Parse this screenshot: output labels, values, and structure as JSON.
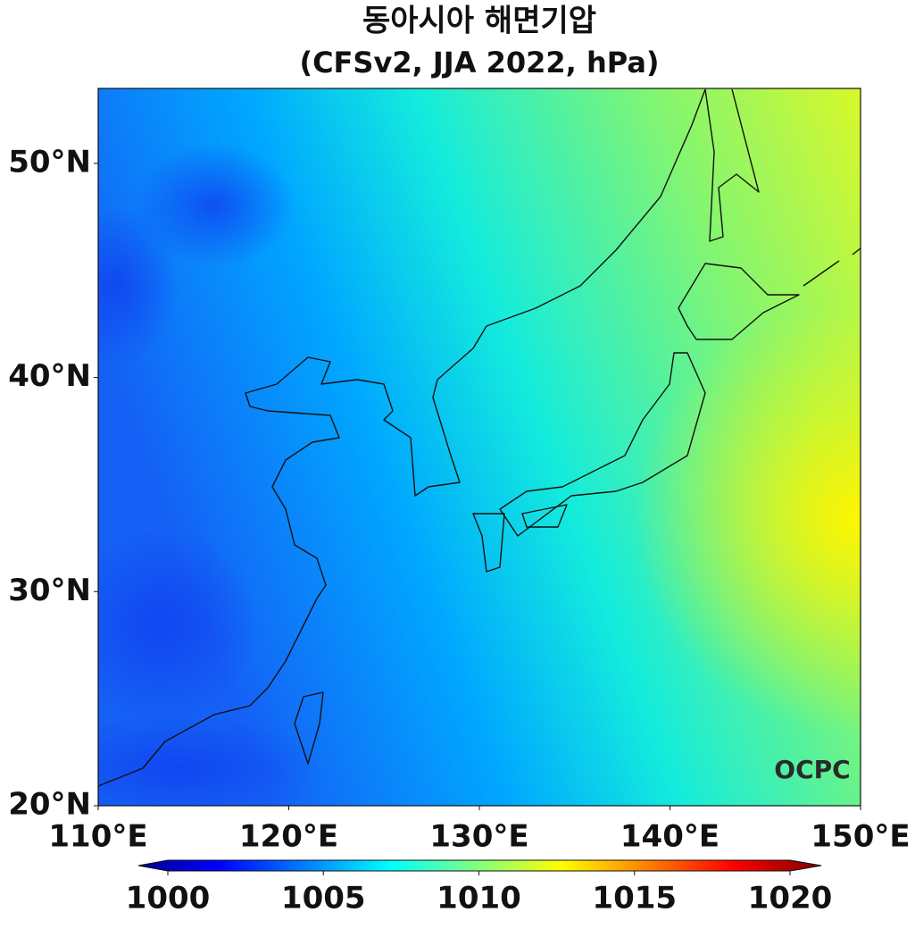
{
  "title": "동아시아 해면기압",
  "subtitle": "(CFSv2, JJA 2022, hPa)",
  "map": {
    "lon_lim": [
      110,
      150
    ],
    "lat_lim": [
      20,
      53.5
    ],
    "lon_ticks": [
      {
        "value": 110,
        "label": "110°E"
      },
      {
        "value": 120,
        "label": "120°E"
      },
      {
        "value": 130,
        "label": "130°E"
      },
      {
        "value": 140,
        "label": "140°E"
      },
      {
        "value": 150,
        "label": "150°E"
      }
    ],
    "lat_ticks": [
      {
        "value": 20,
        "label": "20°N"
      },
      {
        "value": 30,
        "label": "30°N"
      },
      {
        "value": 40,
        "label": "40°N"
      },
      {
        "value": 50,
        "label": "50°N"
      }
    ]
  },
  "colorbar": {
    "lim": [
      1000,
      1020
    ],
    "ticks": [
      1000,
      1005,
      1010,
      1015,
      1020
    ]
  },
  "logo": "OCPC"
}
